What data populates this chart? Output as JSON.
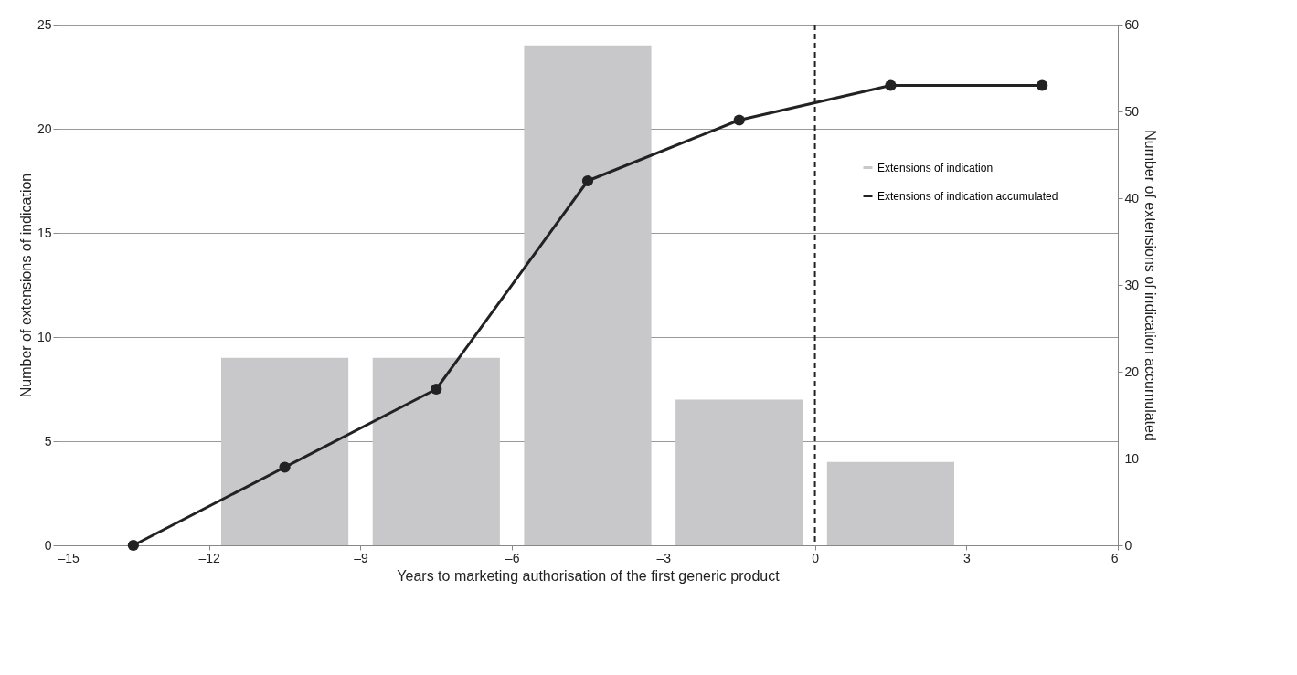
{
  "chart_data": {
    "type": "bar",
    "xlabel": "Years to marketing authorisation of the first generic product",
    "ylabel": "Number of extensions of indication",
    "y2label": "Number of extensions of indication accumulated",
    "xlim": [
      -15,
      6
    ],
    "xticks": [
      {
        "value": -15,
        "label": "–15"
      },
      {
        "value": -12,
        "label": "–12"
      },
      {
        "value": -9,
        "label": "–9"
      },
      {
        "value": -6,
        "label": "–6"
      },
      {
        "value": -3,
        "label": "–3"
      },
      0,
      3,
      6
    ],
    "ylim": [
      0,
      25
    ],
    "yticks": [
      0,
      5,
      10,
      15,
      20,
      25
    ],
    "y2lim": [
      0,
      60
    ],
    "y2ticks": [
      0,
      10,
      20,
      30,
      40,
      50,
      60
    ],
    "grid": "y",
    "legend": "right",
    "series": [
      {
        "name": "Extensions of indication",
        "color": "#c8c8ca",
        "x": [
          -10.5,
          -7.5,
          -4.5,
          -1.5,
          1.5
        ],
        "values": [
          9,
          9,
          24,
          7,
          4
        ]
      },
      {
        "name": "Extensions of indication accumulated",
        "type": "line",
        "axis": "y2",
        "color": "#222222",
        "marker": "circle",
        "x": [
          -13.5,
          -10.5,
          -7.5,
          -4.5,
          -1.5,
          1.5,
          4.5
        ],
        "values": [
          0,
          9,
          18,
          42,
          49,
          53,
          53
        ]
      }
    ],
    "ref_lines": [
      {
        "axis": "x",
        "value": 0,
        "color": "#222222",
        "line_style": "dashed"
      }
    ]
  }
}
